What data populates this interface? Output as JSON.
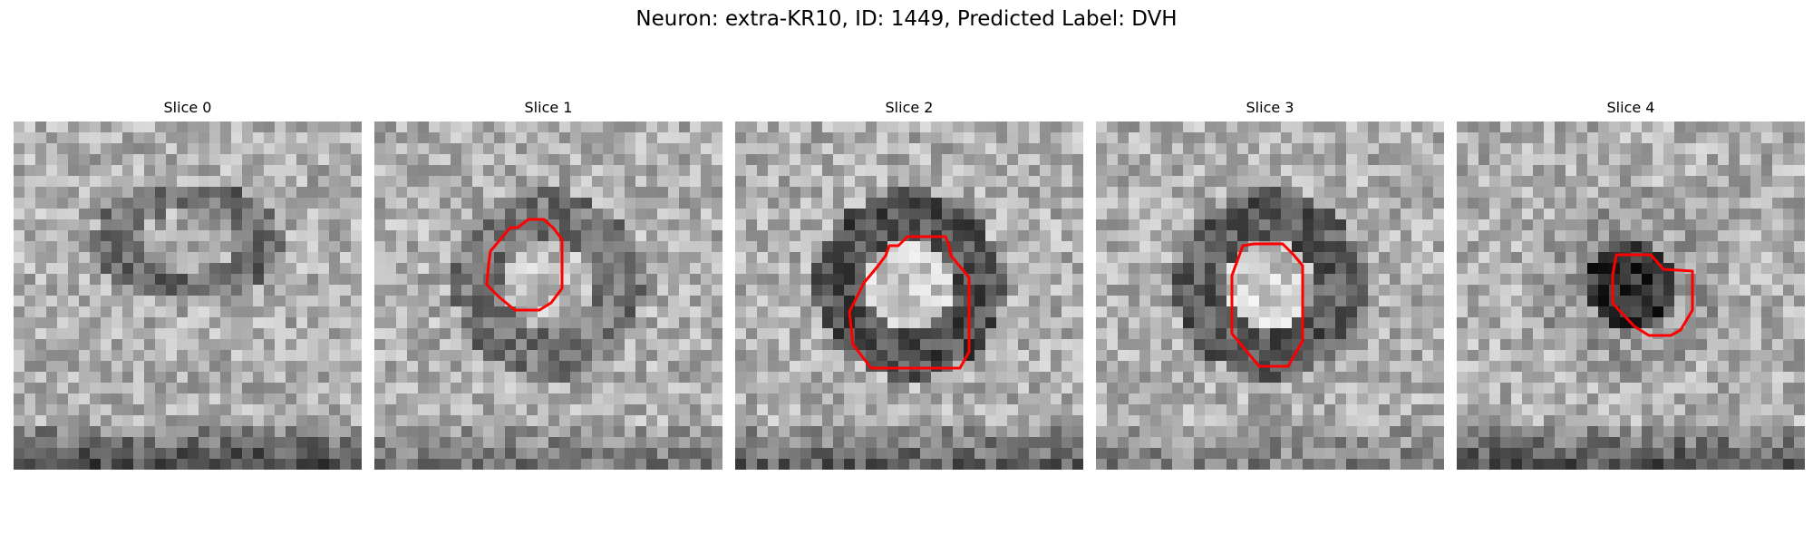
{
  "figure": {
    "title": "Neuron: extra-KR10, ID: 1449, Predicted Label: DVH",
    "slices": [
      {
        "label": "Slice 0",
        "has_roi": false,
        "ring": 0.7,
        "center_dark": 0.25,
        "bottom_dark": 0.9
      },
      {
        "label": "Slice 1",
        "has_roi": true,
        "ring": 0.6,
        "center_dark": 0.1,
        "bottom_dark": 0.5
      },
      {
        "label": "Slice 2",
        "has_roi": true,
        "ring": 1.0,
        "center_dark": 0.0,
        "bottom_dark": 0.7
      },
      {
        "label": "Slice 3",
        "has_roi": true,
        "ring": 0.9,
        "center_dark": 0.0,
        "bottom_dark": 0.4
      },
      {
        "label": "Slice 4",
        "has_roi": true,
        "ring": 0.2,
        "center_dark": 0.95,
        "bottom_dark": 0.8
      }
    ],
    "roi_color": "#ff0000",
    "colormap": "gray"
  }
}
